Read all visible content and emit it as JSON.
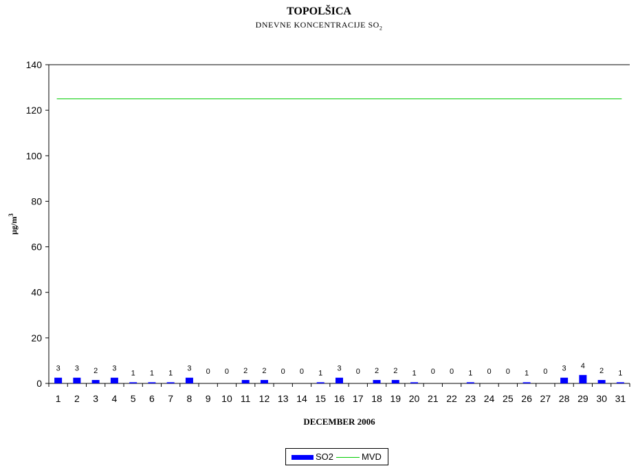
{
  "chart_data": {
    "type": "bar",
    "title": "TOPOLŠICA",
    "subtitle": "DNEVNE KONCENTRACIJE SO",
    "subtitle_subscript": "2",
    "xlabel": "DECEMBER 2006",
    "ylabel": "µg/m",
    "ylabel_superscript": "3",
    "ylim": [
      0,
      140
    ],
    "yticks": [
      0,
      20,
      40,
      60,
      80,
      100,
      120,
      140
    ],
    "categories": [
      "1",
      "2",
      "3",
      "4",
      "5",
      "6",
      "7",
      "8",
      "9",
      "10",
      "11",
      "12",
      "13",
      "14",
      "15",
      "16",
      "17",
      "18",
      "19",
      "20",
      "21",
      "22",
      "23",
      "24",
      "25",
      "26",
      "27",
      "28",
      "29",
      "30",
      "31"
    ],
    "series": [
      {
        "name": "SO2",
        "type": "bar",
        "color": "#0000ff",
        "values": [
          2.5,
          2.5,
          1.5,
          2.5,
          0.5,
          0.5,
          0.5,
          2.5,
          0,
          0,
          1.5,
          1.5,
          0,
          0,
          0.5,
          2.5,
          0,
          1.5,
          1.5,
          0.5,
          0,
          0,
          0.5,
          0,
          0,
          0.5,
          0,
          2.5,
          3.7,
          1.5,
          0.5
        ],
        "data_labels": [
          "3",
          "3",
          "2",
          "3",
          "1",
          "1",
          "1",
          "3",
          "0",
          "0",
          "2",
          "2",
          "0",
          "0",
          "1",
          "3",
          "0",
          "2",
          "2",
          "1",
          "0",
          "0",
          "1",
          "0",
          "0",
          "1",
          "0",
          "3",
          "4",
          "2",
          "1"
        ]
      },
      {
        "name": "MVD",
        "type": "line",
        "color": "#00cc00",
        "constant": 125
      }
    ],
    "grid": "top border only",
    "legend_position": "bottom-center"
  }
}
